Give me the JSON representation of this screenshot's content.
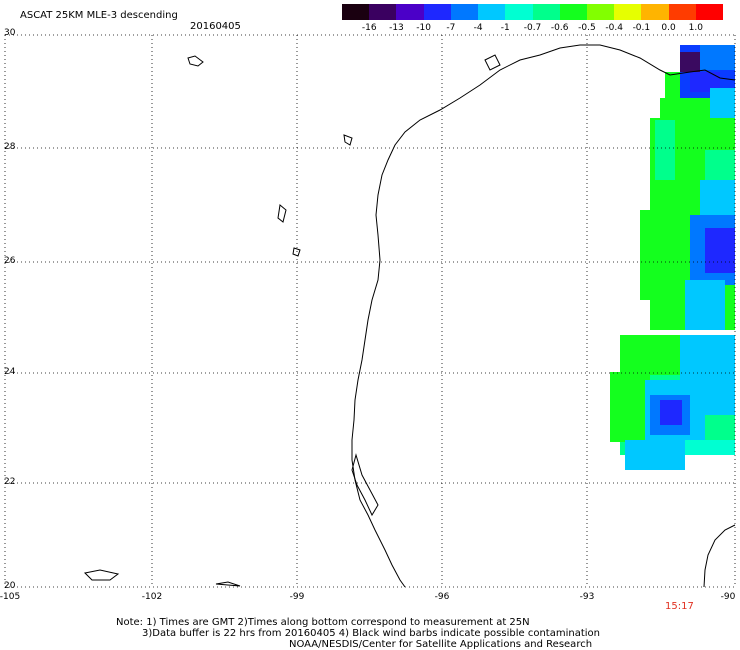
{
  "header": {
    "title": "ASCAT 25KM MLE-3 descending",
    "date": "20160405"
  },
  "colorbar": {
    "labels": [
      "-16",
      "-13",
      "-10",
      "-7",
      "-4",
      "-1",
      "-0.7",
      "-0.6",
      "-0.5",
      "-0.4",
      "-0.1",
      "0.0",
      "1.0"
    ],
    "colors": [
      "#1a0010",
      "#3a0060",
      "#4b00c8",
      "#1e28ff",
      "#0078ff",
      "#00c8ff",
      "#00ffd2",
      "#00ff8c",
      "#14ff1e",
      "#82ff00",
      "#e6ff00",
      "#ffb400",
      "#ff3c00",
      "#ff0000"
    ]
  },
  "axes": {
    "lat_labels": [
      "30",
      "28",
      "26",
      "24",
      "22",
      "20"
    ],
    "lon_labels": [
      "-105",
      "-102",
      "-99",
      "-96",
      "-93",
      "-90"
    ]
  },
  "timestamp": "15:17",
  "timestamp_color": "#e03020",
  "notes": {
    "line1": "Note: 1) Times are GMT 2)Times along bottom correspond to measurement at 25N",
    "line2": "3)Data buffer is 22 hrs from 20160405 4) Black wind barbs indicate possible contamination",
    "line3": "NOAA/NESDIS/Center for Satellite Applications and Research"
  }
}
